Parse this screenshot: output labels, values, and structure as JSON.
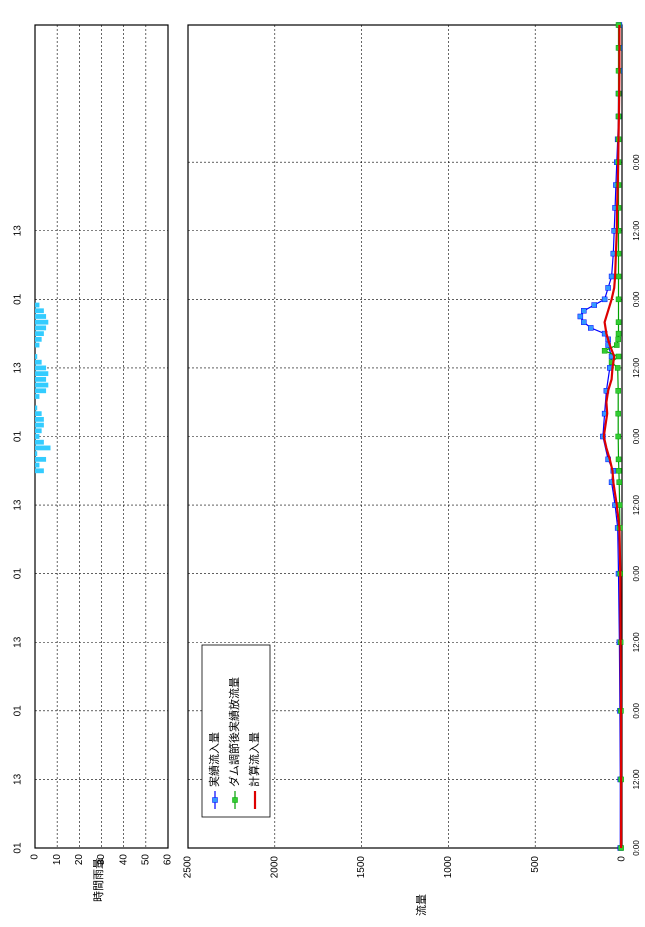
{
  "chart_data": [
    {
      "type": "bar",
      "panel": "rainfall",
      "ylabel": "時間雨量",
      "ylim": [
        0,
        60
      ],
      "yticks": [
        "0",
        "10",
        "20",
        "30",
        "40",
        "50",
        "60"
      ],
      "time_labels": [
        "01",
        "13",
        "01",
        "13",
        "01",
        "13",
        "01",
        "13",
        "01",
        "13"
      ],
      "time_label_hours": [
        0,
        12,
        24,
        36,
        48,
        60,
        72,
        84,
        96,
        108
      ],
      "grid": true,
      "series": [
        {
          "hours": [
            66,
            67,
            68,
            69,
            70,
            71,
            72,
            73,
            74,
            75,
            76,
            77,
            78,
            79,
            80,
            81,
            82,
            83,
            84,
            85,
            86,
            87,
            88,
            89,
            90,
            91,
            92,
            93,
            94,
            95
          ],
          "values": [
            4,
            2,
            5,
            1,
            7,
            4,
            2,
            3,
            4,
            4,
            3,
            1,
            0,
            2,
            5,
            6,
            5,
            6,
            5,
            3,
            1,
            0,
            2,
            3,
            4,
            5,
            6,
            5,
            4,
            2
          ],
          "color": "#33ccff"
        }
      ]
    },
    {
      "type": "line",
      "panel": "flow",
      "ylabel": "流量",
      "ylim": [
        0,
        2500
      ],
      "yticks": [
        "2500",
        "2000",
        "1500",
        "1000",
        "500",
        "0"
      ],
      "xticks": [
        "0:00",
        "12:00",
        "0:00",
        "12:00",
        "0:00",
        "12:00",
        "0:00",
        "12:00",
        "0:00",
        "12:00",
        "0:00"
      ],
      "grid": true,
      "legend": "bottom-left",
      "series": [
        {
          "name": "実績流入量",
          "color": "#0000ff",
          "marker": "square",
          "marker_color": "#3399ff",
          "x": [
            0,
            12,
            24,
            36,
            48,
            56,
            60,
            64,
            66,
            68,
            72,
            76,
            80,
            84,
            86,
            88,
            89,
            90,
            91,
            92,
            93,
            94,
            95,
            96,
            98,
            100,
            104,
            108,
            112,
            116,
            120,
            124,
            128,
            132,
            136,
            140,
            144
          ],
          "y": [
            10,
            10,
            12,
            15,
            20,
            25,
            40,
            60,
            50,
            80,
            110,
            100,
            90,
            70,
            60,
            80,
            80,
            100,
            180,
            220,
            240,
            220,
            160,
            100,
            80,
            60,
            50,
            45,
            40,
            35,
            30,
            25,
            20,
            20,
            15,
            15,
            15
          ]
        },
        {
          "name": "ダム調節後実績放流量",
          "color": "#00a000",
          "marker": "square",
          "marker_color": "#33cc33",
          "x": [
            0,
            12,
            24,
            36,
            48,
            56,
            60,
            64,
            66,
            68,
            72,
            76,
            80,
            84,
            85,
            86,
            87,
            88,
            89,
            90,
            92,
            96,
            100,
            104,
            108,
            112,
            116,
            120,
            124,
            128,
            132,
            136,
            140,
            144
          ],
          "y": [
            5,
            5,
            6,
            8,
            10,
            12,
            14,
            16,
            18,
            20,
            22,
            22,
            22,
            25,
            60,
            20,
            100,
            30,
            22,
            20,
            20,
            20,
            20,
            20,
            20,
            20,
            20,
            20,
            20,
            20,
            20,
            20,
            20,
            20
          ]
        },
        {
          "name": "計算流入量",
          "color": "#dd0000",
          "marker": "none",
          "x": [
            0,
            12,
            24,
            36,
            48,
            56,
            60,
            64,
            66,
            68,
            70,
            72,
            74,
            76,
            78,
            80,
            82,
            84,
            86,
            88,
            90,
            92,
            94,
            96,
            98,
            100,
            104,
            108,
            112,
            116,
            120,
            124,
            128,
            132,
            136,
            140,
            144
          ],
          "y": [
            5,
            5,
            6,
            8,
            10,
            15,
            30,
            50,
            55,
            70,
            90,
            105,
            95,
            85,
            90,
            80,
            60,
            55,
            45,
            70,
            90,
            100,
            80,
            60,
            45,
            40,
            35,
            30,
            28,
            25,
            22,
            20,
            18,
            16,
            15,
            15,
            15
          ]
        }
      ]
    }
  ]
}
